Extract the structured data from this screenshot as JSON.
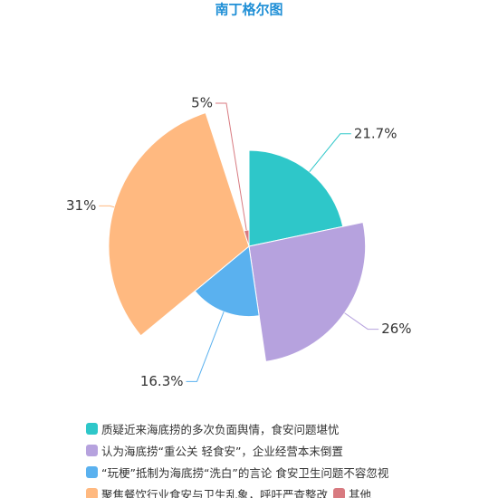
{
  "chart_data": {
    "type": "rose",
    "title": "南丁格尔图",
    "categories": [
      "质疑近来海底捞的多次负面舆情，食安问题堪忧",
      "认为海底捞“重公关 轻食安”，企业经营本末倒置",
      "“玩梗”抵制为海底捞“洗白”的言论 食安卫生问题不容忽视",
      "聚焦餐饮行业食安与卫生乱象，呼吁严查整改",
      "其他"
    ],
    "values": [
      21.7,
      26,
      16.3,
      31,
      5
    ],
    "value_labels": [
      "21.7%",
      "26%",
      "16.3%",
      "31%",
      "5%"
    ],
    "colors": [
      "#2ec7c9",
      "#b6a2de",
      "#5ab1ef",
      "#ffb980",
      "#d87a80"
    ]
  }
}
